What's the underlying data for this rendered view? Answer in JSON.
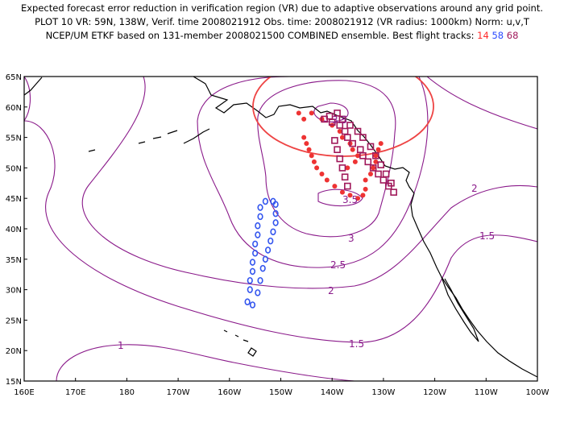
{
  "title": {
    "line1": "Expected forecast error reduction in verification region (VR) due to adaptive observations around any grid point.",
    "line2": "PLOT 10 VR: 59N, 138W, Verif. time 2008021912 Obs. time: 2008021912 (VR radius: 1000km) Norm: u,v,T",
    "line3_prefix": "NCEP/UM ETKF based on 131-member 2008021500 COMBINED ensemble.  Best flight tracks:",
    "track_a": "14",
    "track_b": "58",
    "track_c": "68"
  },
  "colors": {
    "contour": "#8a1a8a",
    "vr_circle": "#ee4444",
    "track_14": "#ee3333",
    "track_58": "#3355ee",
    "track_68": "#a0185a"
  },
  "axes": {
    "lat_labels": [
      "65N",
      "60N",
      "55N",
      "50N",
      "45N",
      "40N",
      "35N",
      "30N",
      "25N",
      "20N",
      "15N"
    ],
    "lon_labels": [
      "160E",
      "170E",
      "180",
      "170W",
      "160W",
      "150W",
      "140W",
      "130W",
      "120W",
      "110W",
      "100W"
    ]
  },
  "contour_labels": [
    "3.5",
    "3.5",
    "3",
    "2.5",
    "2",
    "2",
    "1.5",
    "1.5",
    "1"
  ],
  "map_extent": {
    "lat": [
      15,
      65
    ],
    "lon_east": [
      160,
      260
    ]
  },
  "verification_region": {
    "center_lat": 59,
    "center_lon_east": 222,
    "radius_km": 1000
  },
  "flight_tracks": {
    "track_14": [
      [
        59,
        213.5
      ],
      [
        58,
        214.5
      ],
      [
        59,
        216
      ],
      [
        58,
        218
      ],
      [
        57,
        220
      ],
      [
        56,
        221.5
      ],
      [
        55,
        222
      ],
      [
        54,
        223.5
      ],
      [
        53,
        224
      ],
      [
        52,
        225
      ],
      [
        51,
        224.5
      ],
      [
        50,
        223
      ],
      [
        55,
        214.5
      ],
      [
        54,
        215
      ],
      [
        53,
        215.5
      ],
      [
        52,
        216
      ],
      [
        51,
        216.5
      ],
      [
        50,
        217
      ],
      [
        49,
        218
      ],
      [
        48,
        219
      ],
      [
        47,
        220.5
      ],
      [
        46,
        222
      ],
      [
        45.5,
        223.5
      ],
      [
        45,
        225
      ],
      [
        45.5,
        226
      ],
      [
        46.5,
        226.5
      ],
      [
        48,
        226.5
      ],
      [
        49,
        227.5
      ],
      [
        50,
        228
      ],
      [
        51,
        228.5
      ],
      [
        52,
        228.5
      ],
      [
        53,
        229
      ],
      [
        54,
        229.5
      ]
    ],
    "track_58": [
      [
        44.5,
        207
      ],
      [
        43.5,
        206
      ],
      [
        42,
        206
      ],
      [
        40.5,
        205.5
      ],
      [
        39,
        205.5
      ],
      [
        37.5,
        205
      ],
      [
        36,
        205
      ],
      [
        34.5,
        204.5
      ],
      [
        33,
        204.5
      ],
      [
        31.5,
        204
      ],
      [
        30,
        204
      ],
      [
        28,
        203.5
      ],
      [
        27.5,
        204.5
      ],
      [
        29.5,
        205.5
      ],
      [
        31.5,
        206
      ],
      [
        33.5,
        206.5
      ],
      [
        35,
        207
      ],
      [
        36.5,
        207.5
      ],
      [
        38,
        208
      ],
      [
        39.5,
        208.5
      ],
      [
        41,
        209
      ],
      [
        42.5,
        209
      ],
      [
        44,
        209
      ],
      [
        44.5,
        208.5
      ]
    ],
    "track_68": [
      [
        58,
        218.5
      ],
      [
        57.5,
        220
      ],
      [
        57,
        221.5
      ],
      [
        56,
        222.5
      ],
      [
        55,
        223
      ],
      [
        54,
        224
      ],
      [
        53,
        225.5
      ],
      [
        52,
        226
      ],
      [
        51,
        227
      ],
      [
        50,
        228
      ],
      [
        49,
        229
      ],
      [
        48,
        230
      ],
      [
        47,
        231
      ],
      [
        46,
        232
      ],
      [
        47.5,
        231.5
      ],
      [
        49,
        230.5
      ],
      [
        50.5,
        229.5
      ],
      [
        52,
        228.5
      ],
      [
        53.5,
        227.5
      ],
      [
        55,
        226
      ],
      [
        56,
        225
      ],
      [
        57,
        223.5
      ],
      [
        58,
        222
      ],
      [
        59,
        221
      ],
      [
        58.5,
        219.5
      ],
      [
        54.5,
        220.5
      ],
      [
        53,
        221
      ],
      [
        51.5,
        221.5
      ],
      [
        50,
        222
      ],
      [
        48.5,
        222.5
      ],
      [
        47,
        223
      ]
    ]
  }
}
